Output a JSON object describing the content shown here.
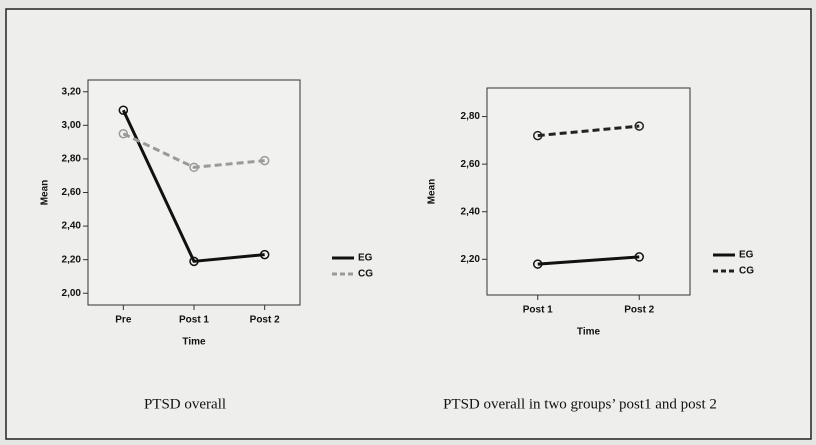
{
  "chart_data": [
    {
      "type": "line",
      "caption": "PTSD overall",
      "xlabel": "Time",
      "ylabel": "Mean",
      "categories": [
        "Pre",
        "Post 1",
        "Post 2"
      ],
      "ylim": [
        1.93,
        3.27
      ],
      "yticks": [
        {
          "value": 2.0,
          "label": "2,00"
        },
        {
          "value": 2.2,
          "label": "2,20"
        },
        {
          "value": 2.4,
          "label": "2,40"
        },
        {
          "value": 2.6,
          "label": "2,60"
        },
        {
          "value": 2.8,
          "label": "2,80"
        },
        {
          "value": 3.0,
          "label": "3,00"
        },
        {
          "value": 3.2,
          "label": "3,20"
        }
      ],
      "series": [
        {
          "name": "EG",
          "color": "#111111",
          "dashed": false,
          "values": [
            3.09,
            2.19,
            2.23
          ]
        },
        {
          "name": "CG",
          "color": "#9a9a9a",
          "dashed": true,
          "values": [
            2.95,
            2.75,
            2.79
          ]
        }
      ]
    },
    {
      "type": "line",
      "caption": "PTSD overall in two groups’ post1 and post 2",
      "xlabel": "Time",
      "ylabel": "Mean",
      "categories": [
        "Post 1",
        "Post 2"
      ],
      "ylim": [
        2.05,
        2.92
      ],
      "yticks": [
        {
          "value": 2.2,
          "label": "2,20"
        },
        {
          "value": 2.4,
          "label": "2,40"
        },
        {
          "value": 2.6,
          "label": "2,60"
        },
        {
          "value": 2.8,
          "label": "2,80"
        }
      ],
      "series": [
        {
          "name": "EG",
          "color": "#111111",
          "dashed": false,
          "values": [
            2.18,
            2.21
          ]
        },
        {
          "name": "CG",
          "color": "#222222",
          "dashed": true,
          "values": [
            2.72,
            2.76
          ]
        }
      ]
    }
  ]
}
